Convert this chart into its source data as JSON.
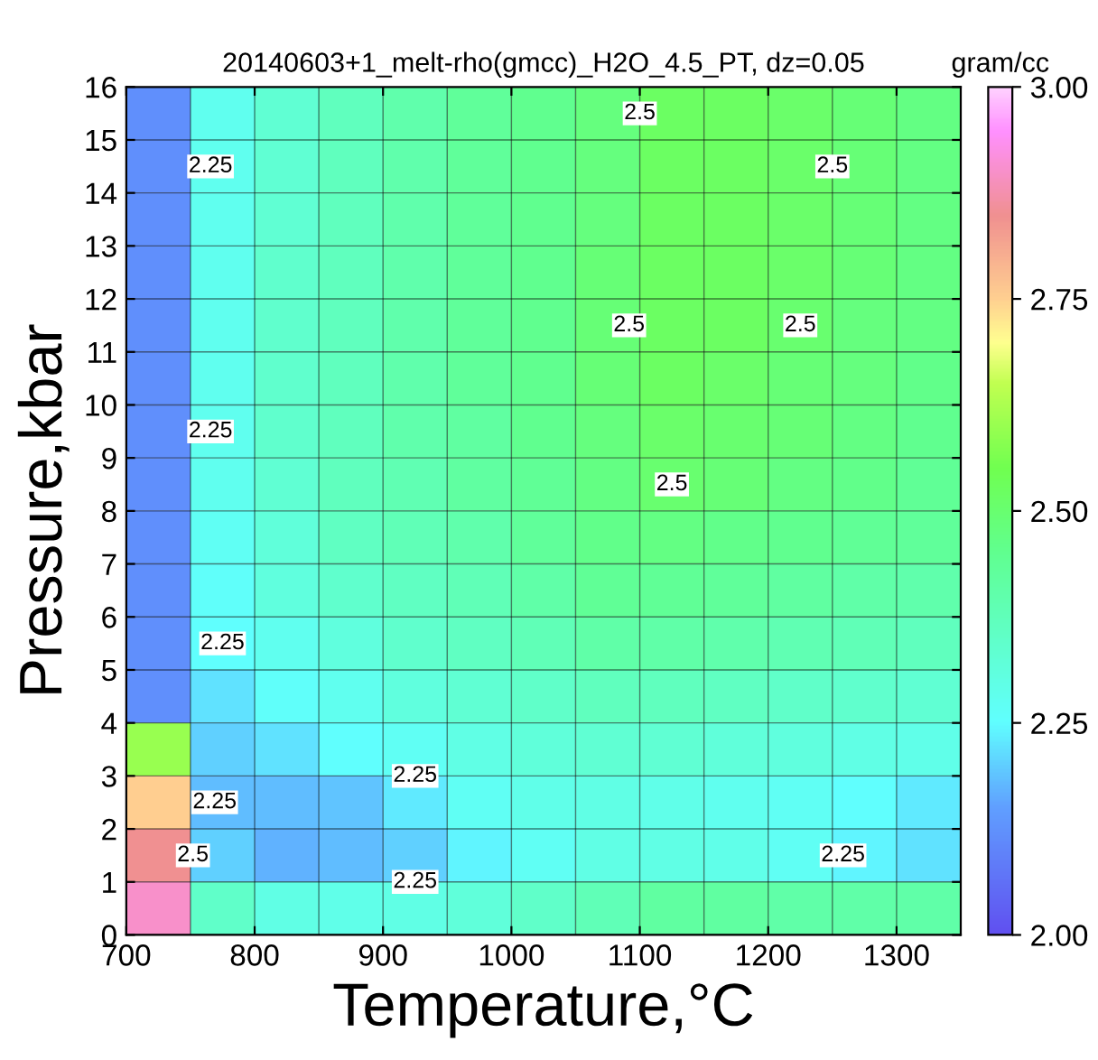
{
  "chart_data": {
    "type": "heatmap",
    "title": "20140603+1_melt-rho(gmcc)_H2O_4.5_PT, dz=0.05",
    "xlabel": "Temperature,°C",
    "ylabel": "Pressure,kbar",
    "clabel": "gram/cc",
    "x": [
      725,
      775,
      825,
      875,
      925,
      975,
      1025,
      1075,
      1125,
      1175,
      1225,
      1275,
      1325
    ],
    "y": [
      15.5,
      14.5,
      13.5,
      12.5,
      11.5,
      10.5,
      9.5,
      8.5,
      7.5,
      6.5,
      5.5,
      4.5,
      3.5,
      2.5,
      1.5,
      0.5
    ],
    "cells": [
      [
        2.12,
        2.28,
        2.33,
        2.37,
        2.4,
        2.43,
        2.45,
        2.48,
        2.52,
        2.52,
        2.51,
        2.49,
        2.47
      ],
      [
        2.12,
        2.28,
        2.33,
        2.37,
        2.4,
        2.43,
        2.45,
        2.48,
        2.52,
        2.52,
        2.51,
        2.49,
        2.47
      ],
      [
        2.12,
        2.28,
        2.33,
        2.37,
        2.4,
        2.43,
        2.45,
        2.48,
        2.52,
        2.52,
        2.51,
        2.49,
        2.47
      ],
      [
        2.12,
        2.28,
        2.34,
        2.37,
        2.4,
        2.43,
        2.45,
        2.49,
        2.52,
        2.52,
        2.51,
        2.49,
        2.47
      ],
      [
        2.12,
        2.28,
        2.34,
        2.37,
        2.4,
        2.43,
        2.45,
        2.49,
        2.52,
        2.52,
        2.5,
        2.48,
        2.47
      ],
      [
        2.12,
        2.28,
        2.34,
        2.37,
        2.4,
        2.43,
        2.45,
        2.49,
        2.52,
        2.51,
        2.49,
        2.48,
        2.46
      ],
      [
        2.12,
        2.28,
        2.34,
        2.37,
        2.4,
        2.42,
        2.45,
        2.48,
        2.51,
        2.5,
        2.49,
        2.47,
        2.45
      ],
      [
        2.12,
        2.28,
        2.33,
        2.37,
        2.39,
        2.42,
        2.44,
        2.47,
        2.5,
        2.49,
        2.47,
        2.46,
        2.44
      ],
      [
        2.12,
        2.27,
        2.32,
        2.36,
        2.38,
        2.4,
        2.43,
        2.46,
        2.47,
        2.46,
        2.45,
        2.44,
        2.43
      ],
      [
        2.12,
        2.26,
        2.31,
        2.34,
        2.36,
        2.38,
        2.41,
        2.44,
        2.44,
        2.43,
        2.42,
        2.41,
        2.4
      ],
      [
        2.12,
        2.25,
        2.28,
        2.31,
        2.34,
        2.36,
        2.38,
        2.41,
        2.41,
        2.4,
        2.39,
        2.38,
        2.37
      ],
      [
        2.12,
        2.22,
        2.26,
        2.28,
        2.31,
        2.33,
        2.35,
        2.37,
        2.37,
        2.36,
        2.35,
        2.34,
        2.33
      ],
      [
        2.6,
        2.2,
        2.22,
        2.25,
        2.27,
        2.3,
        2.32,
        2.33,
        2.33,
        2.32,
        2.31,
        2.3,
        2.29
      ],
      [
        2.75,
        2.18,
        2.18,
        2.19,
        2.23,
        2.27,
        2.29,
        2.3,
        2.29,
        2.28,
        2.27,
        2.25,
        2.23
      ],
      [
        2.85,
        2.2,
        2.17,
        2.18,
        2.2,
        2.24,
        2.27,
        2.3,
        2.3,
        2.29,
        2.27,
        2.24,
        2.22
      ],
      [
        2.9,
        2.35,
        2.3,
        2.29,
        2.3,
        2.32,
        2.35,
        2.38,
        2.42,
        2.42,
        2.41,
        2.41,
        2.41
      ]
    ],
    "xlim": [
      700,
      1350
    ],
    "xticks": [
      700,
      800,
      900,
      1000,
      1100,
      1200,
      1300
    ],
    "ylim": [
      0,
      16
    ],
    "yticks": [
      0,
      1,
      2,
      3,
      4,
      5,
      6,
      7,
      8,
      9,
      10,
      11,
      12,
      13,
      14,
      15,
      16
    ],
    "clim": [
      2.0,
      3.0
    ],
    "cticks": [
      {
        "value": 2.0,
        "label": "2.00"
      },
      {
        "value": 2.25,
        "label": "2.25"
      },
      {
        "value": 2.5,
        "label": "2.50"
      },
      {
        "value": 2.75,
        "label": "2.75"
      },
      {
        "value": 3.0,
        "label": "3.00"
      }
    ],
    "grid": true,
    "annotations": [
      "2.25",
      "2.25",
      "2.25",
      "2.25",
      "2.25",
      "2.25",
      "2.25",
      "2.5",
      "2.5",
      "2.5",
      "2.5",
      "2.5",
      "2.5"
    ]
  }
}
